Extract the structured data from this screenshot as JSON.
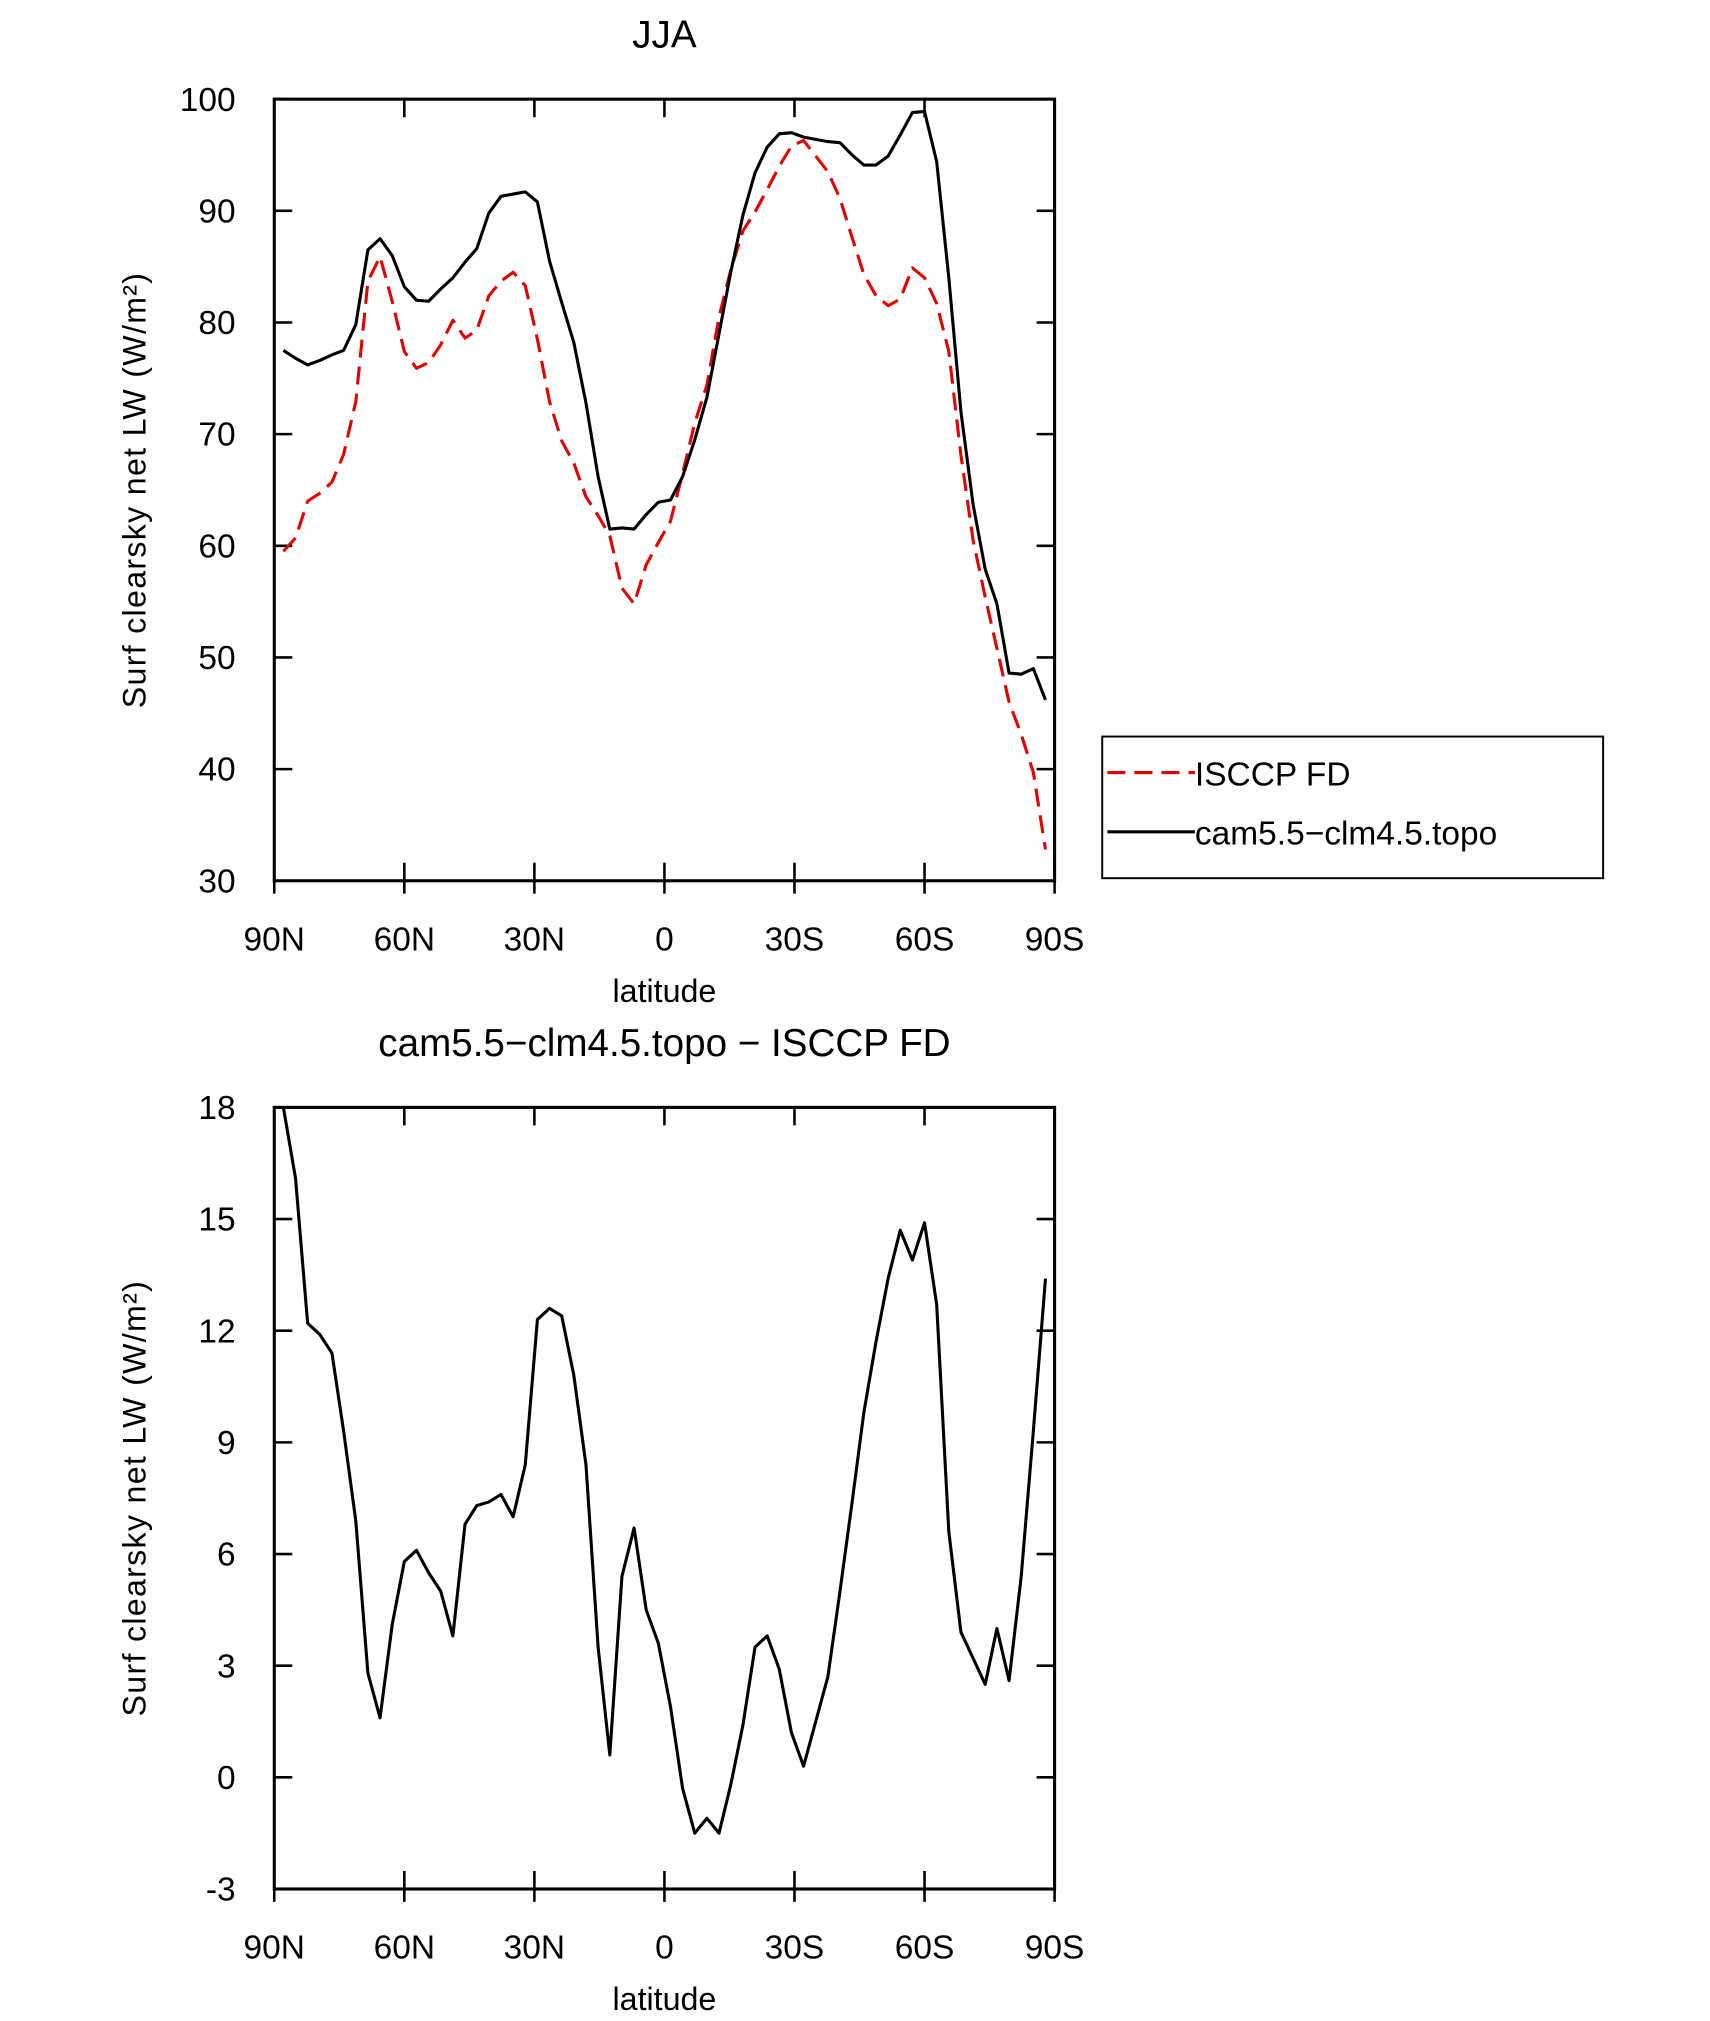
{
  "chart_data": [
    {
      "type": "line",
      "title": "JJA",
      "x_label": "latitude",
      "y_label": "Surf clearsky net LW (W/m²)",
      "x": [
        87.9,
        85.1,
        82.3,
        79.5,
        76.7,
        74.0,
        71.2,
        68.4,
        65.6,
        62.8,
        60.0,
        57.2,
        54.4,
        51.6,
        48.8,
        46.0,
        43.3,
        40.5,
        37.7,
        34.9,
        32.1,
        29.3,
        26.5,
        23.7,
        20.9,
        18.1,
        15.3,
        12.6,
        9.8,
        7.0,
        4.2,
        1.4,
        -1.4,
        -4.2,
        -7.0,
        -9.8,
        -12.6,
        -15.3,
        -18.1,
        -20.9,
        -23.7,
        -26.5,
        -29.3,
        -32.1,
        -34.9,
        -37.7,
        -40.5,
        -43.3,
        -46.0,
        -48.8,
        -51.6,
        -54.4,
        -57.2,
        -60.0,
        -62.8,
        -65.6,
        -68.4,
        -71.2,
        -74.0,
        -76.7,
        -79.5,
        -82.3,
        -85.1,
        -87.9
      ],
      "series": [
        {
          "name": "ISCCP FD",
          "color": "#e00000",
          "line_style": "dashed",
          "values": [
            59.5,
            60.7,
            64.0,
            64.7,
            65.7,
            68.2,
            72.9,
            83.7,
            85.9,
            81.9,
            77.4,
            75.9,
            76.4,
            78.0,
            80.2,
            78.6,
            79.3,
            82.4,
            83.7,
            84.5,
            83.3,
            78.5,
            72.9,
            69.4,
            67.4,
            64.4,
            62.7,
            60.9,
            56.2,
            54.8,
            58.3,
            60.3,
            62.2,
            66.5,
            71.0,
            74.4,
            80.5,
            84.7,
            88.2,
            89.9,
            91.9,
            94.0,
            95.8,
            96.3,
            94.9,
            93.5,
            91.1,
            87.6,
            84.3,
            82.4,
            81.5,
            82.1,
            84.9,
            84.0,
            81.7,
            77.4,
            68.1,
            60.5,
            55.4,
            50.8,
            46.0,
            43.1,
            39.7,
            32.8
          ]
        },
        {
          "name": "cam5.5−clm4.5.topo",
          "color": "#000000",
          "line_style": "solid",
          "values": [
            77.5,
            76.8,
            76.2,
            76.6,
            77.1,
            77.5,
            79.8,
            86.5,
            87.5,
            86.0,
            83.2,
            82.0,
            81.9,
            83.0,
            84.0,
            85.4,
            86.6,
            89.8,
            91.3,
            91.5,
            91.7,
            90.8,
            85.5,
            81.8,
            78.2,
            72.8,
            66.2,
            61.5,
            61.6,
            61.5,
            62.8,
            63.9,
            64.1,
            66.2,
            69.5,
            73.3,
            79.0,
            84.5,
            89.6,
            93.4,
            95.7,
            96.9,
            97.0,
            96.6,
            96.4,
            96.2,
            96.1,
            95.0,
            94.1,
            94.1,
            94.9,
            96.8,
            98.8,
            98.9,
            94.4,
            84.0,
            72.0,
            63.7,
            57.9,
            54.8,
            48.6,
            48.5,
            49.0,
            46.2
          ]
        }
      ],
      "xlim": [
        90,
        -90
      ],
      "xticks": [
        {
          "value": 90,
          "label": "90N"
        },
        {
          "value": 60,
          "label": "60N"
        },
        {
          "value": 30,
          "label": "30N"
        },
        0,
        {
          "value": -30,
          "label": "30S"
        },
        {
          "value": -60,
          "label": "60S"
        },
        {
          "value": -90,
          "label": "90S"
        }
      ],
      "ylim": [
        30,
        100
      ],
      "yticks": [
        30,
        40,
        50,
        60,
        70,
        80,
        90,
        100
      ],
      "legend": "right",
      "grid": false
    },
    {
      "type": "line",
      "title": "cam5.5−clm4.5.topo − ISCCP FD",
      "x_label": "latitude",
      "y_label": "Surf clearsky net LW (W/m²)",
      "x": [
        87.9,
        85.1,
        82.3,
        79.5,
        76.7,
        74.0,
        71.2,
        68.4,
        65.6,
        62.8,
        60.0,
        57.2,
        54.4,
        51.6,
        48.8,
        46.0,
        43.3,
        40.5,
        37.7,
        34.9,
        32.1,
        29.3,
        26.5,
        23.7,
        20.9,
        18.1,
        15.3,
        12.6,
        9.8,
        7.0,
        4.2,
        1.4,
        -1.4,
        -4.2,
        -7.0,
        -9.8,
        -12.6,
        -15.3,
        -18.1,
        -20.9,
        -23.7,
        -26.5,
        -29.3,
        -32.1,
        -34.9,
        -37.7,
        -40.5,
        -43.3,
        -46.0,
        -48.8,
        -51.6,
        -54.4,
        -57.2,
        -60.0,
        -62.8,
        -65.6,
        -68.4,
        -71.2,
        -74.0,
        -76.7,
        -79.5,
        -82.3,
        -85.1,
        -87.9
      ],
      "series": [
        {
          "color": "#000000",
          "line_style": "solid",
          "values": [
            18.0,
            16.1,
            12.2,
            11.9,
            11.4,
            9.3,
            6.9,
            2.8,
            1.6,
            4.1,
            5.8,
            6.1,
            5.5,
            5.0,
            3.8,
            6.8,
            7.3,
            7.4,
            7.6,
            7.0,
            8.4,
            12.3,
            12.6,
            12.4,
            10.8,
            8.4,
            3.5,
            0.6,
            5.4,
            6.7,
            4.5,
            3.6,
            1.9,
            -0.3,
            -1.5,
            -1.1,
            -1.5,
            -0.2,
            1.4,
            3.5,
            3.8,
            2.9,
            1.2,
            0.3,
            1.5,
            2.7,
            5.0,
            7.4,
            9.8,
            11.7,
            13.4,
            14.7,
            13.9,
            14.9,
            12.7,
            6.6,
            3.9,
            3.2,
            2.5,
            4.0,
            2.6,
            5.4,
            9.3,
            13.4
          ]
        }
      ],
      "xlim": [
        90,
        -90
      ],
      "xticks": [
        {
          "value": 90,
          "label": "90N"
        },
        {
          "value": 60,
          "label": "60N"
        },
        {
          "value": 30,
          "label": "30N"
        },
        0,
        {
          "value": -30,
          "label": "30S"
        },
        {
          "value": -60,
          "label": "60S"
        },
        {
          "value": -90,
          "label": "90S"
        }
      ],
      "ylim": [
        -3,
        18
      ],
      "yticks": [
        -3,
        0,
        3,
        6,
        9,
        12,
        15,
        18
      ],
      "grid": false
    }
  ]
}
